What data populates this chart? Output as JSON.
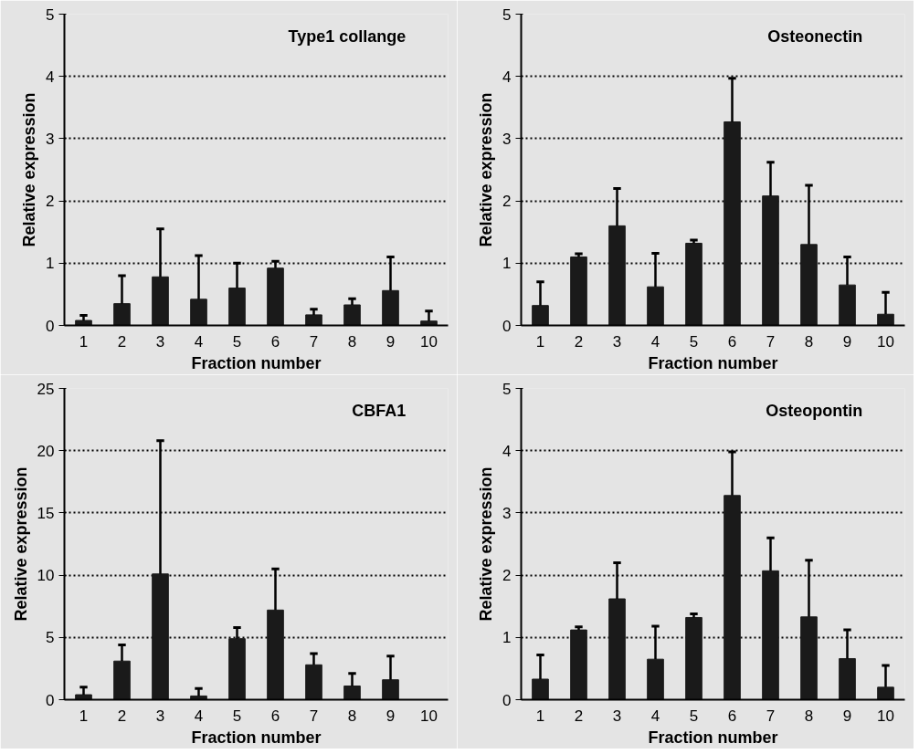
{
  "chart_data": [
    {
      "type": "bar",
      "title": "Type1 collange",
      "xlabel": "Fraction number",
      "ylabel": "Relative expression",
      "categories": [
        "1",
        "2",
        "3",
        "4",
        "5",
        "6",
        "7",
        "8",
        "9",
        "10"
      ],
      "series": [
        {
          "color": "#1a1a1a",
          "values": [
            0.08,
            0.35,
            0.78,
            0.42,
            0.6,
            0.92,
            0.17,
            0.33,
            0.56,
            0.07
          ],
          "errors": [
            [
              0.08,
              0.16
            ],
            [
              0.35,
              0.8
            ],
            [
              0.78,
              1.55
            ],
            [
              0.42,
              1.12
            ],
            [
              0.6,
              1.0
            ],
            [
              0.92,
              1.03
            ],
            [
              0.17,
              0.26
            ],
            [
              0.33,
              0.43
            ],
            [
              0.56,
              1.1
            ],
            [
              0.07,
              0.23
            ]
          ]
        }
      ],
      "ylim": [
        0,
        5
      ],
      "yticks": [
        0,
        1,
        2,
        3,
        4,
        5
      ],
      "grid": "y"
    },
    {
      "type": "bar",
      "title": "Osteonectin",
      "xlabel": "Fraction number",
      "ylabel": "Relative expression",
      "categories": [
        "1",
        "2",
        "3",
        "4",
        "5",
        "6",
        "7",
        "8",
        "9",
        "10"
      ],
      "series": [
        {
          "color": "#1a1a1a",
          "values": [
            0.32,
            1.1,
            1.6,
            0.62,
            1.32,
            3.27,
            2.08,
            1.3,
            0.65,
            0.18
          ],
          "errors": [
            [
              0.32,
              0.7
            ],
            [
              1.1,
              1.15
            ],
            [
              1.6,
              2.2
            ],
            [
              0.62,
              1.16
            ],
            [
              1.32,
              1.37
            ],
            [
              3.27,
              3.97
            ],
            [
              2.08,
              2.62
            ],
            [
              1.3,
              2.25
            ],
            [
              0.65,
              1.1
            ],
            [
              0.18,
              0.53
            ]
          ]
        }
      ],
      "ylim": [
        0,
        5
      ],
      "yticks": [
        0,
        1,
        2,
        3,
        4,
        5
      ],
      "grid": "y"
    },
    {
      "type": "bar",
      "title": "CBFA1",
      "xlabel": "Fraction number",
      "ylabel": "Relative expression",
      "categories": [
        "1",
        "2",
        "3",
        "4",
        "5",
        "6",
        "7",
        "8",
        "9",
        "10"
      ],
      "series": [
        {
          "color": "#1a1a1a",
          "values": [
            0.4,
            3.1,
            10.1,
            0.3,
            4.9,
            7.2,
            2.8,
            1.1,
            1.6,
            null
          ],
          "errors": [
            [
              0.4,
              1.0
            ],
            [
              3.1,
              4.4
            ],
            [
              10.1,
              20.8
            ],
            [
              0.3,
              0.9
            ],
            [
              4.9,
              5.8
            ],
            [
              7.2,
              10.5
            ],
            [
              2.8,
              3.7
            ],
            [
              1.1,
              2.1
            ],
            [
              1.6,
              3.5
            ],
            null
          ]
        }
      ],
      "ylim": [
        0,
        25
      ],
      "yticks": [
        0,
        5,
        10,
        15,
        20,
        25
      ],
      "grid": "y"
    },
    {
      "type": "bar",
      "title": "Osteopontin",
      "xlabel": "Fraction number",
      "ylabel": "Relative expression",
      "categories": [
        "1",
        "2",
        "3",
        "4",
        "5",
        "6",
        "7",
        "8",
        "9",
        "10"
      ],
      "series": [
        {
          "color": "#1a1a1a",
          "values": [
            0.33,
            1.12,
            1.62,
            0.65,
            1.32,
            3.28,
            2.07,
            1.33,
            0.66,
            0.2
          ],
          "errors": [
            [
              0.33,
              0.72
            ],
            [
              1.12,
              1.17
            ],
            [
              1.62,
              2.2
            ],
            [
              0.65,
              1.18
            ],
            [
              1.32,
              1.38
            ],
            [
              3.28,
              3.98
            ],
            [
              2.07,
              2.6
            ],
            [
              1.33,
              2.24
            ],
            [
              0.66,
              1.12
            ],
            [
              0.2,
              0.55
            ]
          ]
        }
      ],
      "ylim": [
        0,
        5
      ],
      "yticks": [
        0,
        1,
        2,
        3,
        4,
        5
      ],
      "grid": "y"
    }
  ]
}
